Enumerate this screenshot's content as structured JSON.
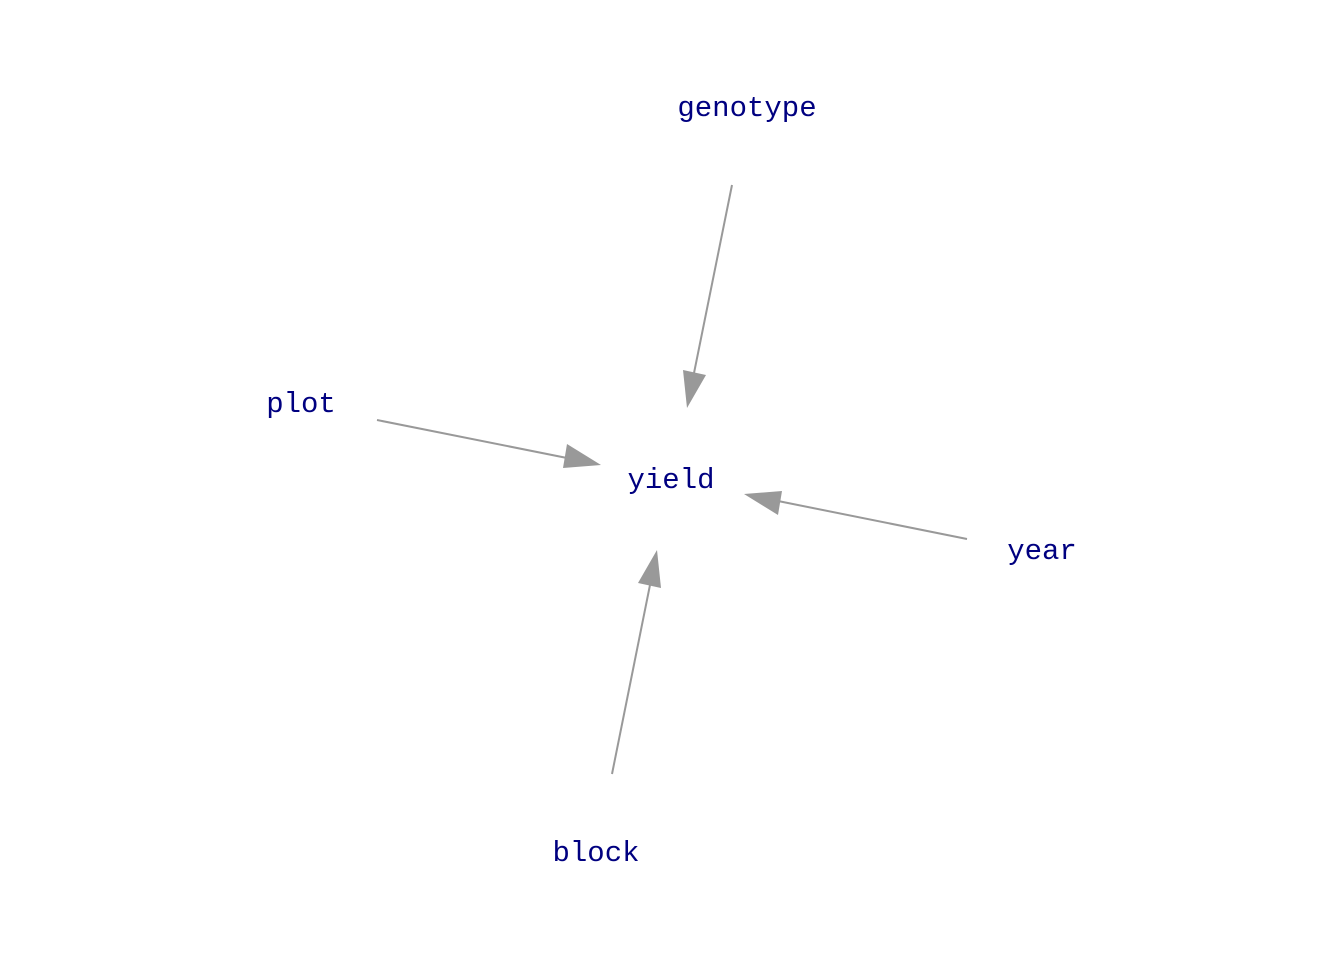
{
  "colors": {
    "node_text": "#000080",
    "edge": "#999999",
    "background": "#ffffff"
  },
  "nodes": [
    {
      "id": "genotype",
      "label": "genotype"
    },
    {
      "id": "plot",
      "label": "plot"
    },
    {
      "id": "yield",
      "label": "yield"
    },
    {
      "id": "year",
      "label": "year"
    },
    {
      "id": "block",
      "label": "block"
    }
  ],
  "edges": [
    {
      "from": "genotype",
      "to": "yield"
    },
    {
      "from": "plot",
      "to": "yield"
    },
    {
      "from": "year",
      "to": "yield"
    },
    {
      "from": "block",
      "to": "yield"
    }
  ]
}
